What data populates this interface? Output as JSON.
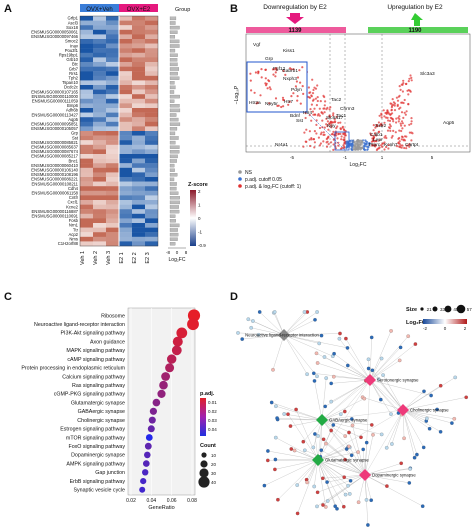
{
  "panels": {
    "a": "A",
    "b": "B",
    "c": "C",
    "d": "D"
  },
  "heatmap": {
    "group_labels": [
      "OVX+Veh",
      "OVX+E2"
    ],
    "group_colors": [
      "#3a7dd8",
      "#e5197e"
    ],
    "group_legend_label": "Group",
    "columns": [
      "Veh 1",
      "Veh 2",
      "Veh 3",
      "E2 1",
      "E2 2",
      "E2 3"
    ],
    "genes": [
      "Grfp1",
      "Ascl3",
      "Sox18",
      "ENSMUSG00000050061",
      "ENSMUSG00000097466",
      "Smoc2",
      "Inav",
      "Pou3f1",
      "Rps19bp1",
      "Grb10",
      "Btc",
      "Grb7",
      "Rrs1",
      "Tph2",
      "Tspan10",
      "Dcdc2c",
      "ENSMUSG00000107165",
      "ENSMUSG00000110000",
      "ENSMUSG00000111059",
      "Bmp6",
      "Adh6b",
      "ENSMUSG00000113427",
      "Aqp5",
      "ENSMUSG00000095851",
      "ENSMUSG00000105057",
      "Grp",
      "Sst",
      "ENSMUSG00000085821",
      "ENSMUSG00000085637",
      "ENSMUSG00000087674",
      "ENSMUSG00000085217",
      "Bnc1",
      "ENSMUSG00000060410",
      "ENSMUSG00000106140",
      "ENSMUSG00000108196",
      "ENSMUSG00000086221",
      "ENSMUSG00000108211",
      "Cdh4",
      "ENSMUSG00000061158",
      "Cntfr",
      "Cxcl1",
      "Kcne2",
      "ENSMUSG00000116887",
      "ENSMUSG00000110691",
      "Fosb",
      "Nrn1",
      "Ttr",
      "Acp2",
      "Nms",
      "C1H2orf88"
    ],
    "zscore_title": "Z-score",
    "zscore_ticks": [
      "2",
      "1",
      "0",
      "-1",
      "-0.9"
    ],
    "logfc_axis_ticks": [
      "-8",
      "0",
      "8"
    ],
    "logfc_label": "Log₂FC"
  },
  "volcano": {
    "down_title": "Downregulation by E2",
    "up_title": "Upregulation by E2",
    "down_count": "1139",
    "up_count": "1190",
    "xlabel": "Log₂FC",
    "ylabel": "−Log₁₀P",
    "labels": [
      "Vgf",
      "Kiss1",
      "Gabrb1",
      "Nxph3",
      "Htr2a",
      "Npy5r",
      "Htr7",
      "Pdyn",
      "Sst",
      "Tac2",
      "Chrm3",
      "Tac1",
      "Npy",
      "Slc6a17",
      "Bdnf",
      "Sstr2",
      "Calb1",
      "Lepr",
      "Aqp5",
      "Slc3a3",
      "Htr4",
      "Nr4a1",
      "Ptprc",
      "Kcnh7",
      "Cartpt",
      "Fgf12",
      "Grp"
    ],
    "legend": [
      "NS",
      "p.adj. cutoff 0.05",
      "p.adj. & log₂FC (cutoff: 1)"
    ],
    "xticks": [
      "-5",
      "-1",
      "1",
      "5"
    ]
  },
  "chart_data": [
    {
      "type": "scatter",
      "title": "",
      "xlabel": "GeneRatio",
      "ylabel": "",
      "xlim": [
        0.02,
        0.08
      ],
      "xticks": [
        "0.02",
        "0.04",
        "0.06",
        "0.08"
      ],
      "legend_title_color": "p.adj.",
      "legend_color_ticks": [
        "0.01",
        "0.02",
        "0.03",
        "0.04"
      ],
      "legend_title_size": "Count",
      "legend_size_ticks": [
        "10",
        "20",
        "30",
        "40"
      ],
      "categories": [
        "Ribosome",
        "Neuroactive ligand-receptor interaction",
        "PI3K-Akt signaling pathway",
        "Axon guidance",
        "MAPK signaling pathway",
        "cAMP signaling pathway",
        "Protein processing in endoplasmic reticulum",
        "Calcium signaling pathway",
        "Ras signaling pathway",
        "cGMP-PKG signaling pathway",
        "Glutamatergic synapse",
        "GABAergic synapse",
        "Cholinergic synapse",
        "Estrogen signaling pathway",
        "mTOR signaling pathway",
        "FoxO signaling pathway",
        "Dopaminergic synapse",
        "AMPK signaling pathway",
        "Gap junction",
        "ErbB signaling pathway",
        "Synaptic vesicle cycle"
      ],
      "gene_ratio": [
        0.082,
        0.081,
        0.07,
        0.066,
        0.065,
        0.06,
        0.058,
        0.054,
        0.052,
        0.05,
        0.045,
        0.042,
        0.041,
        0.04,
        0.038,
        0.037,
        0.036,
        0.035,
        0.034,
        0.032,
        0.031
      ],
      "p_adj": [
        0.001,
        0.002,
        0.004,
        0.006,
        0.008,
        0.01,
        0.012,
        0.015,
        0.017,
        0.018,
        0.02,
        0.022,
        0.025,
        0.027,
        0.04,
        0.028,
        0.03,
        0.03,
        0.032,
        0.033,
        0.034
      ],
      "count": [
        45,
        43,
        38,
        34,
        33,
        31,
        29,
        28,
        27,
        25,
        22,
        20,
        19,
        19,
        18,
        18,
        17,
        17,
        16,
        15,
        14
      ]
    },
    {
      "type": "network",
      "hubs": [
        "Neuroactive ligand-receptor interaction",
        "Serotonergic synapse",
        "Cholinergic synapse",
        "GABAergic synapse",
        "Glutamatergic synapse",
        "Dopaminergic synapse"
      ],
      "size_legend_title": "Size",
      "size_legend_ticks": [
        "21",
        "33",
        "45",
        "57"
      ],
      "color_legend_title": "Log₂FC",
      "color_legend_ticks": [
        "-2",
        "0",
        "2"
      ]
    }
  ]
}
